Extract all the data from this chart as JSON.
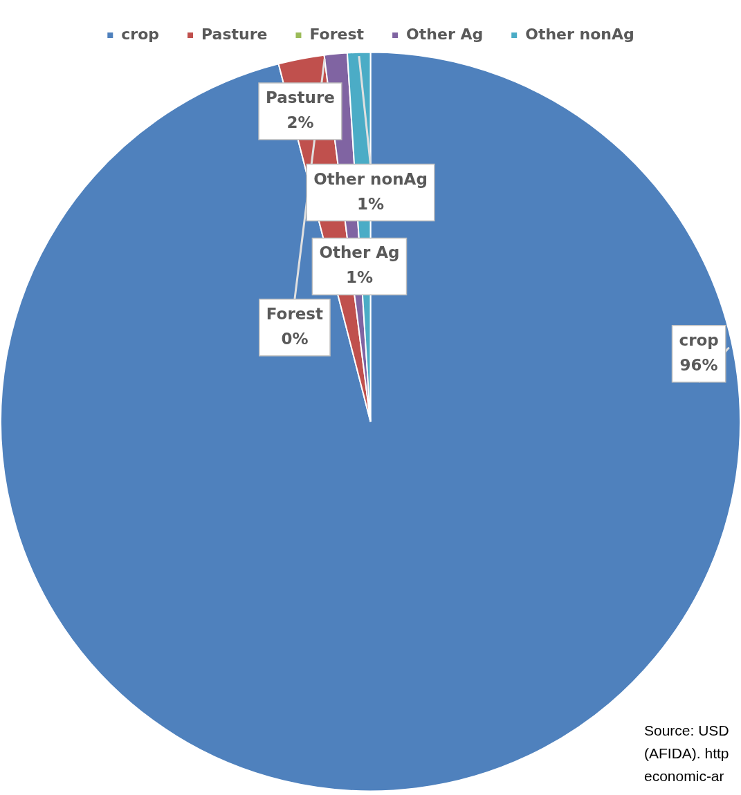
{
  "chart_data": {
    "type": "pie",
    "categories": [
      "crop",
      "Pasture",
      "Forest",
      "Other Ag",
      "Other nonAg"
    ],
    "values": [
      96,
      2,
      0,
      1,
      1
    ],
    "colors": [
      "#4f81bd",
      "#c0504d",
      "#9bbb59",
      "#8064a2",
      "#4bacc6"
    ],
    "value_labels": [
      "96%",
      "2%",
      "0%",
      "1%",
      "1%"
    ],
    "legend": "top",
    "annotations": [
      "Source: USD\n(AFIDA). http\neconomic-ar"
    ]
  }
}
